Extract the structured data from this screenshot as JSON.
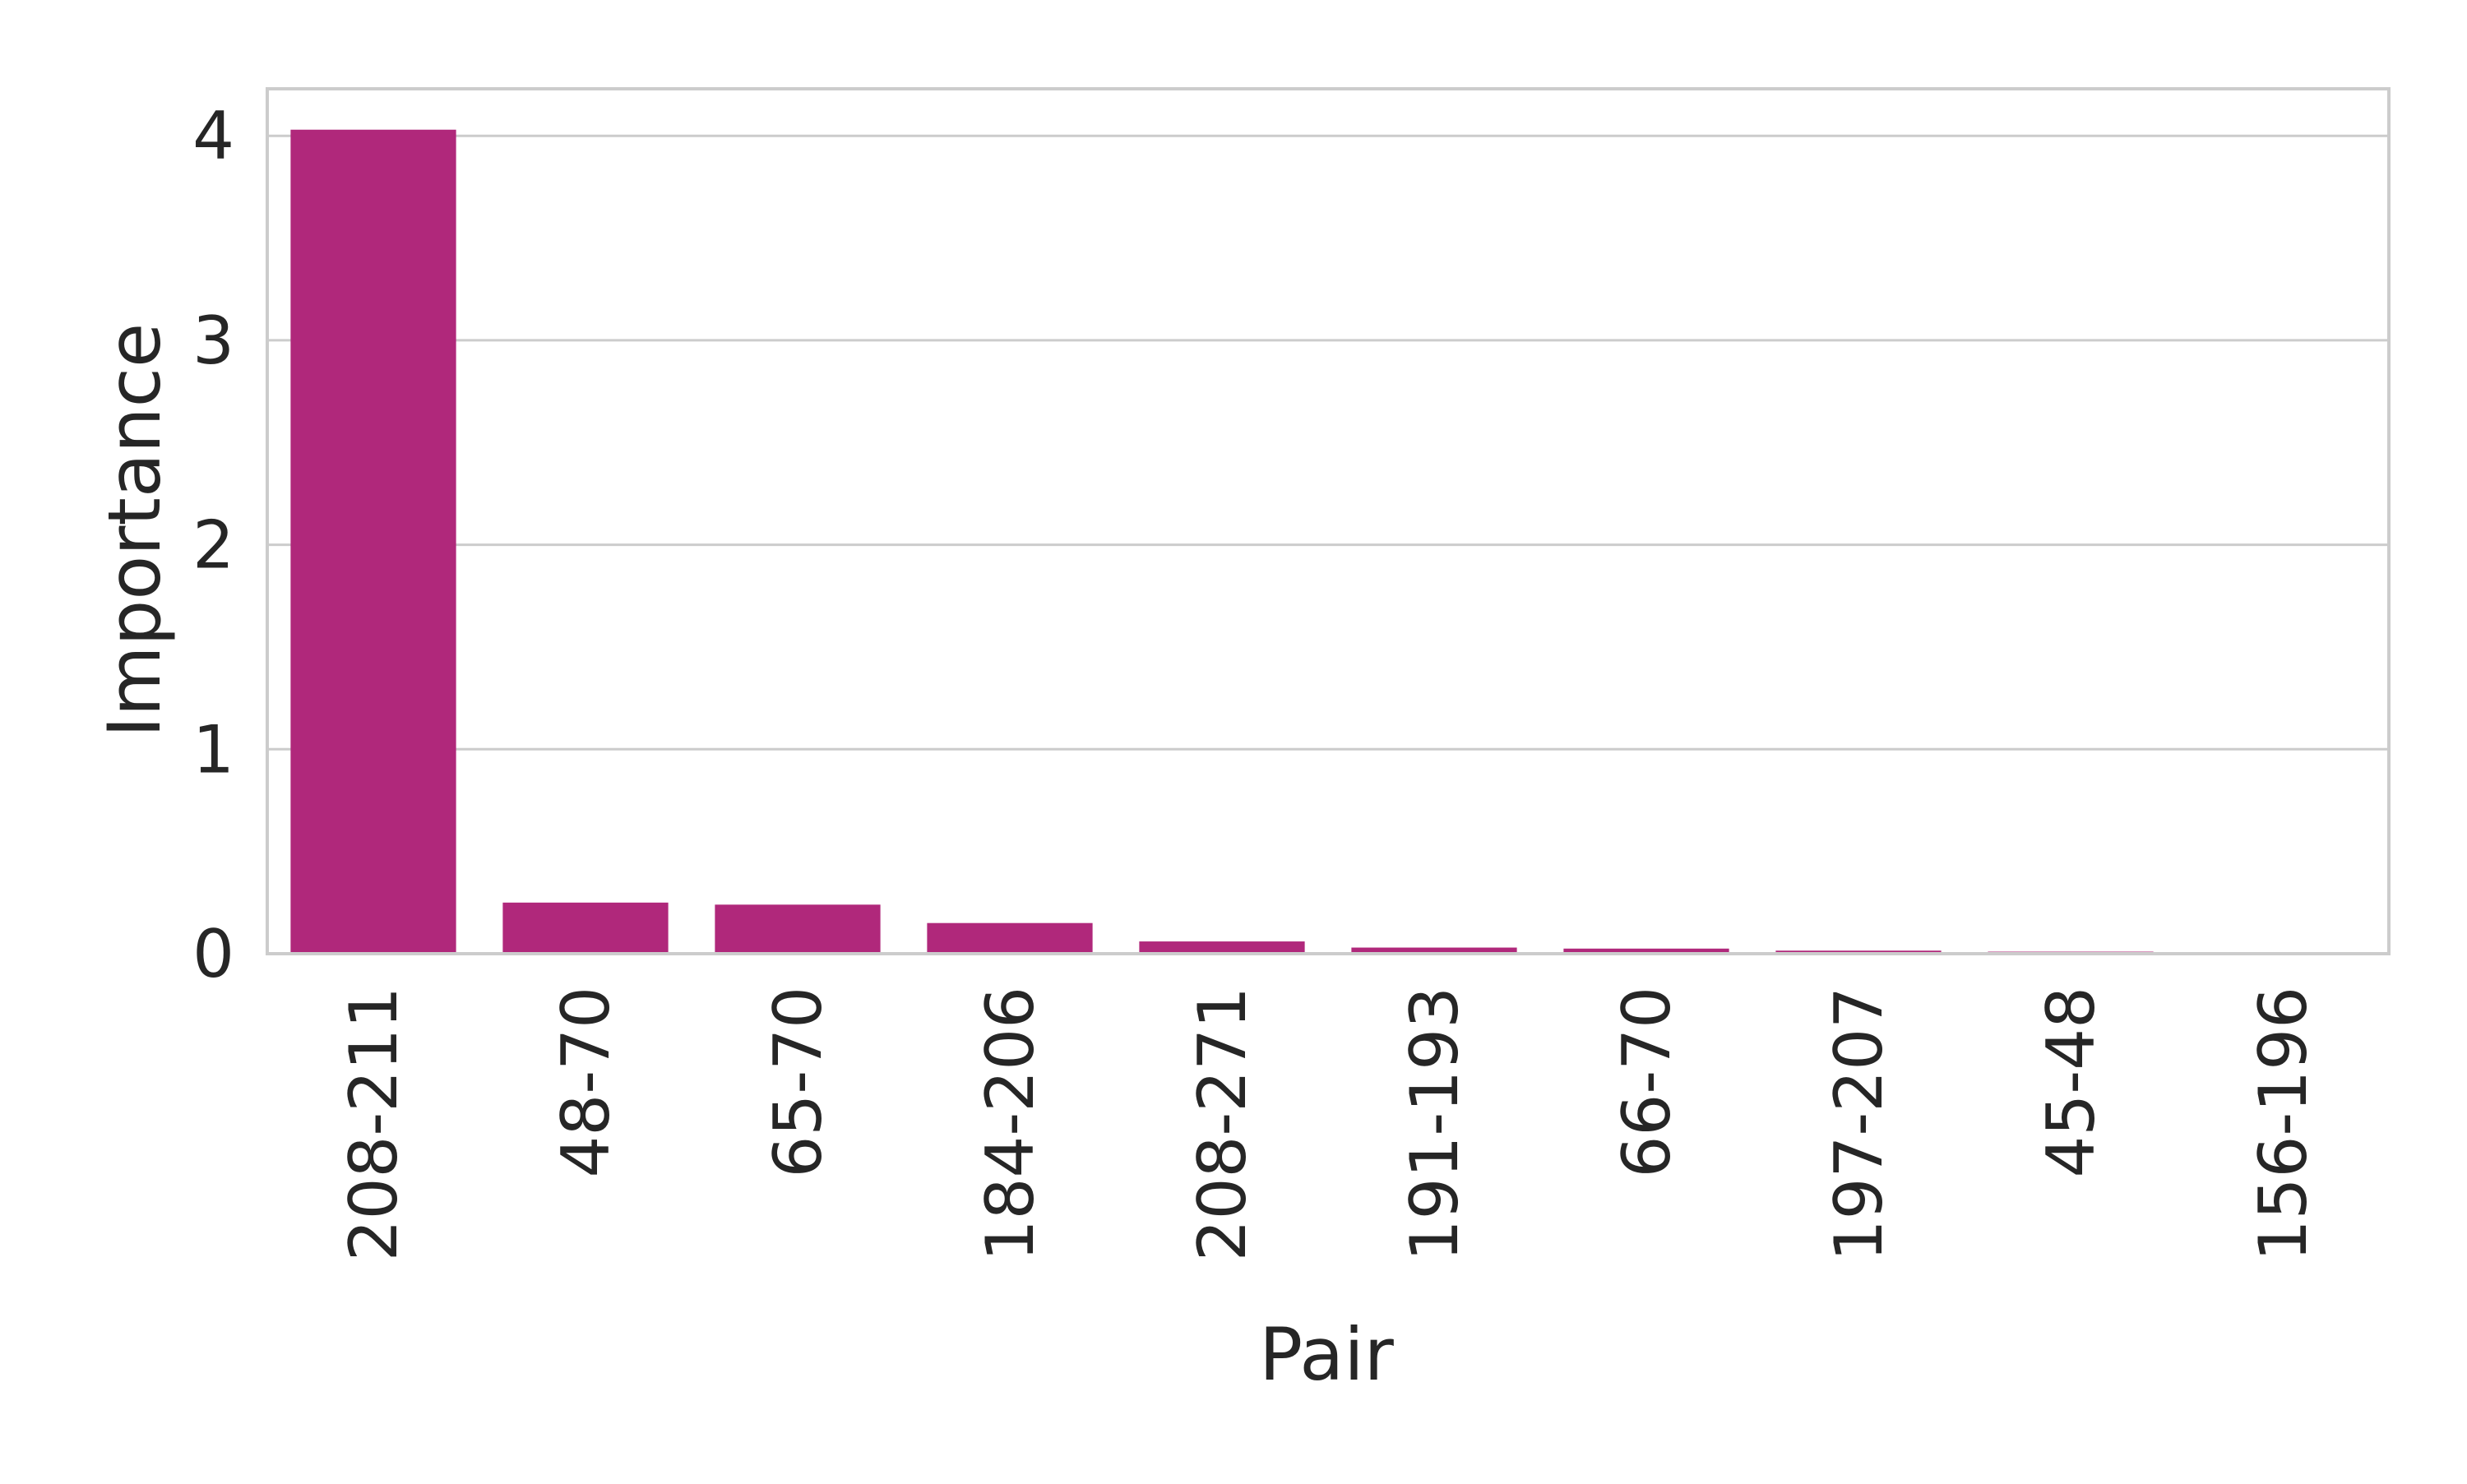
{
  "chart_data": {
    "type": "bar",
    "title": "",
    "xlabel": "Pair",
    "ylabel": "Importance",
    "categories": [
      "208-211",
      "48-70",
      "65-70",
      "184-206",
      "208-271",
      "191-193",
      "66-70",
      "197-207",
      "45-48",
      "156-196"
    ],
    "values": [
      4.03,
      0.25,
      0.24,
      0.15,
      0.06,
      0.03,
      0.025,
      0.015,
      0.01,
      0.008
    ],
    "ylim": [
      0,
      4.23
    ],
    "yticks": [
      0,
      1,
      2,
      3,
      4
    ],
    "grid": "horizontal",
    "bar_color": "#b0287b",
    "gridline_color": "#cccccc",
    "frame_color": "#cccccc"
  }
}
